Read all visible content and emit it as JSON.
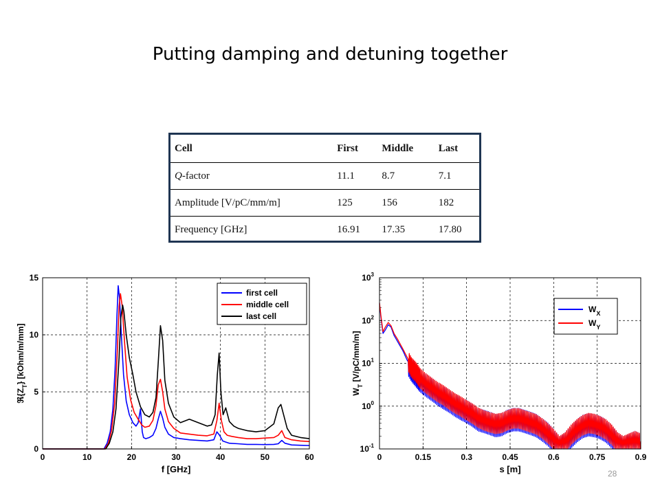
{
  "slide": {
    "title": "Putting damping and detuning together",
    "page_number": "28"
  },
  "table": {
    "header": [
      "Cell",
      "First",
      "Middle",
      "Last"
    ],
    "rows": [
      {
        "label_italic": "Q",
        "label_rest": "-factor",
        "values": [
          "11.1",
          "8.7",
          "7.1"
        ]
      },
      {
        "label": "Amplitude [V/pC/mm/m]",
        "values": [
          "125",
          "156",
          "182"
        ]
      },
      {
        "label": "Frequency [GHz]",
        "values": [
          "16.91",
          "17.35",
          "17.80"
        ]
      }
    ]
  },
  "chart_data": [
    {
      "type": "line",
      "xlabel": "f [GHz]",
      "ylabel": "ℜ{Z_T} [kOhm/m/mm]",
      "xlim": [
        0,
        60
      ],
      "ylim": [
        0,
        15
      ],
      "xticks": [
        0,
        10,
        20,
        30,
        40,
        50,
        60
      ],
      "yticks": [
        0,
        5,
        10,
        15
      ],
      "grid": true,
      "legend_position": "top-right",
      "series": [
        {
          "name": "first cell",
          "color": "#0000ff",
          "x": [
            0,
            13.8,
            14.5,
            15.2,
            15.8,
            16.3,
            16.7,
            17.0,
            17.3,
            17.7,
            18.2,
            18.8,
            19.5,
            20.3,
            21.0,
            21.5,
            22.0,
            22.4,
            22.7,
            23.2,
            24.0,
            24.8,
            25.5,
            26.0,
            26.5,
            27.0,
            27.5,
            28.3,
            29.5,
            31,
            33,
            35,
            37,
            38.5,
            39.2,
            39.8,
            40.5,
            41.2,
            42,
            44,
            46,
            48,
            50,
            52,
            53,
            53.8,
            54.5,
            56,
            58,
            60
          ],
          "y": [
            0,
            0,
            0.5,
            1.5,
            3.5,
            7,
            11.5,
            14.3,
            13.2,
            10,
            6.5,
            4.2,
            3.0,
            2.3,
            2.0,
            2.3,
            3.5,
            1.5,
            1.0,
            0.9,
            1.0,
            1.2,
            1.8,
            2.6,
            3.3,
            2.7,
            1.9,
            1.3,
            1.0,
            0.9,
            0.8,
            0.75,
            0.7,
            0.8,
            1.5,
            1.2,
            0.7,
            0.6,
            0.5,
            0.45,
            0.4,
            0.4,
            0.38,
            0.4,
            0.45,
            0.75,
            0.5,
            0.35,
            0.32,
            0.3
          ]
        },
        {
          "name": "middle cell",
          "color": "#ff0000",
          "x": [
            0,
            14.0,
            14.8,
            15.5,
            16.2,
            16.8,
            17.2,
            17.5,
            17.9,
            18.4,
            19.0,
            19.8,
            20.6,
            21.5,
            22.3,
            23.0,
            24.0,
            24.8,
            25.5,
            26.0,
            26.5,
            27.0,
            27.5,
            28.3,
            29.5,
            31,
            33,
            35,
            37,
            38.5,
            39.2,
            39.7,
            40.2,
            40.8,
            41.5,
            42.5,
            44,
            46,
            48,
            50,
            52,
            53,
            53.8,
            54.5,
            56,
            58,
            60
          ],
          "y": [
            0,
            0,
            0.5,
            1.6,
            4,
            8.5,
            12.5,
            13.6,
            12.5,
            9.5,
            6.3,
            4.3,
            3.2,
            2.6,
            2.1,
            1.9,
            2.0,
            2.5,
            3.8,
            5.6,
            6.1,
            5.0,
            3.5,
            2.4,
            1.8,
            1.4,
            1.3,
            1.2,
            1.15,
            1.3,
            2.5,
            4.0,
            2.5,
            1.5,
            1.2,
            1.1,
            1.0,
            0.9,
            0.9,
            0.95,
            1.0,
            1.2,
            1.6,
            1.0,
            0.8,
            0.7,
            0.65
          ]
        },
        {
          "name": "last cell",
          "color": "#000000",
          "x": [
            0,
            14.2,
            15.0,
            15.8,
            16.5,
            17.2,
            17.6,
            18.0,
            18.3,
            18.8,
            19.5,
            20.3,
            21.0,
            22.0,
            23.0,
            24.0,
            24.8,
            25.5,
            26.0,
            26.5,
            27.0,
            27.5,
            28.3,
            29.5,
            31,
            33,
            35,
            37,
            38,
            38.8,
            39.3,
            39.7,
            40.1,
            40.6,
            41.2,
            42,
            43,
            44,
            46,
            48,
            50,
            52,
            53,
            53.6,
            54.2,
            55,
            56,
            58,
            60
          ],
          "y": [
            0,
            0,
            0.5,
            1.5,
            3.5,
            8,
            11.5,
            12.6,
            12.0,
            10,
            8,
            6.5,
            5.0,
            3.7,
            3.0,
            2.8,
            3.2,
            4.5,
            7.5,
            10.8,
            9.5,
            6.0,
            4.0,
            2.8,
            2.3,
            2.6,
            2.3,
            2.0,
            2.1,
            3.0,
            6.5,
            8.4,
            5.0,
            3.0,
            3.6,
            2.4,
            2.0,
            1.8,
            1.6,
            1.5,
            1.6,
            2.2,
            3.6,
            3.9,
            3.0,
            1.8,
            1.2,
            1.0,
            0.9
          ]
        }
      ]
    },
    {
      "type": "line",
      "xlabel": "s [m]",
      "ylabel": "W_T [V/pC/mm/m]",
      "xlim": [
        0,
        0.9
      ],
      "ylim": [
        0.1,
        1000
      ],
      "yscale": "log",
      "xticks": [
        "0",
        "0.15",
        "0.3",
        "0.45",
        "0.6",
        "0.75",
        "0.9"
      ],
      "yticks": [
        "10^-1",
        "10^0",
        "10^1",
        "10^2",
        "10^3"
      ],
      "grid": true,
      "legend_position": "top-right",
      "series": [
        {
          "name": "W_X",
          "color": "#0000ff",
          "x": [
            0,
            0.005,
            0.012,
            0.02,
            0.03,
            0.04,
            0.05,
            0.065,
            0.08,
            0.095,
            0.11,
            0.125,
            0.14,
            0.16,
            0.18,
            0.2,
            0.22,
            0.24,
            0.26,
            0.28,
            0.3,
            0.32,
            0.34,
            0.36,
            0.38,
            0.4,
            0.42,
            0.44,
            0.46,
            0.48,
            0.5,
            0.52,
            0.54,
            0.56,
            0.58,
            0.6,
            0.62,
            0.64,
            0.66,
            0.68,
            0.7,
            0.72,
            0.74,
            0.76,
            0.78,
            0.8,
            0.82,
            0.84,
            0.86,
            0.88,
            0.9
          ],
          "y": [
            250,
            120,
            50,
            60,
            80,
            70,
            45,
            30,
            20,
            12,
            8,
            6,
            4.5,
            3.5,
            2.8,
            2.2,
            1.8,
            1.5,
            1.2,
            1.0,
            0.85,
            0.7,
            0.55,
            0.5,
            0.45,
            0.4,
            0.42,
            0.5,
            0.55,
            0.55,
            0.5,
            0.45,
            0.4,
            0.32,
            0.25,
            0.18,
            0.12,
            0.15,
            0.22,
            0.3,
            0.38,
            0.42,
            0.4,
            0.36,
            0.3,
            0.22,
            0.15,
            0.12,
            0.14,
            0.16,
            0.14
          ]
        },
        {
          "name": "W_Y",
          "color": "#ff0000",
          "x": [
            0,
            0.005,
            0.012,
            0.02,
            0.03,
            0.04,
            0.05,
            0.065,
            0.08,
            0.095,
            0.11,
            0.125,
            0.14,
            0.16,
            0.18,
            0.2,
            0.22,
            0.24,
            0.26,
            0.28,
            0.3,
            0.32,
            0.34,
            0.36,
            0.38,
            0.4,
            0.42,
            0.44,
            0.46,
            0.48,
            0.5,
            0.52,
            0.54,
            0.56,
            0.58,
            0.6,
            0.62,
            0.64,
            0.66,
            0.68,
            0.7,
            0.72,
            0.74,
            0.76,
            0.78,
            0.8,
            0.82,
            0.84,
            0.86,
            0.88,
            0.9
          ],
          "y": [
            260,
            130,
            55,
            70,
            90,
            75,
            50,
            34,
            22,
            14,
            9,
            7,
            5,
            3.8,
            3.0,
            2.4,
            2.0,
            1.6,
            1.3,
            1.1,
            0.9,
            0.75,
            0.6,
            0.52,
            0.47,
            0.43,
            0.45,
            0.52,
            0.58,
            0.58,
            0.52,
            0.47,
            0.42,
            0.34,
            0.26,
            0.19,
            0.13,
            0.16,
            0.24,
            0.32,
            0.4,
            0.45,
            0.43,
            0.38,
            0.32,
            0.24,
            0.16,
            0.13,
            0.15,
            0.17,
            0.15
          ]
        }
      ]
    }
  ]
}
